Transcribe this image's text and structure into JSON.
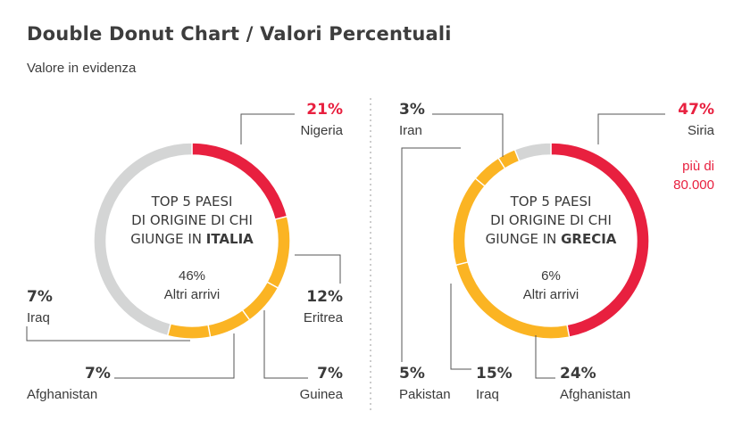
{
  "title": "Double Donut Chart / Valori Percentuali",
  "subtitle": "Valore in evidenza",
  "colors": {
    "highlight": "#e8203f",
    "main": "#fbb423",
    "other": "#d4d5d5",
    "text": "#3a3a3a",
    "leader": "#555555"
  },
  "chart_data": [
    {
      "type": "pie",
      "center": {
        "line1": "TOP 5 PAESI",
        "line2": "DI ORIGINE DI CHI",
        "line3_prefix": "GIUNGE IN ",
        "line3_bold": "ITALIA",
        "other_value": "46%",
        "other_label": "Altri arrivi"
      },
      "slices": [
        {
          "label": "Nigeria",
          "value": 21,
          "value_label": "21%",
          "highlight": true
        },
        {
          "label": "Eritrea",
          "value": 12,
          "value_label": "12%"
        },
        {
          "label": "Guinea",
          "value": 7,
          "value_label": "7%"
        },
        {
          "label": "Afghanistan",
          "value": 7,
          "value_label": "7%"
        },
        {
          "label": "Iraq",
          "value": 7,
          "value_label": "7%"
        },
        {
          "label": "Altri arrivi",
          "value": 46,
          "other": true
        }
      ]
    },
    {
      "type": "pie",
      "center": {
        "line1": "TOP 5 PAESI",
        "line2": "DI ORIGINE DI CHI",
        "line3_prefix": "GIUNGE IN ",
        "line3_bold": "GRECIA",
        "other_value": "6%",
        "other_label": "Altri arrivi"
      },
      "note_line1": "più di",
      "note_line2": "80.000",
      "slices": [
        {
          "label": "Siria",
          "value": 47,
          "value_label": "47%",
          "highlight": true
        },
        {
          "label": "Afghanistan",
          "value": 24,
          "value_label": "24%"
        },
        {
          "label": "Iraq",
          "value": 15,
          "value_label": "15%"
        },
        {
          "label": "Pakistan",
          "value": 5,
          "value_label": "5%"
        },
        {
          "label": "Iran",
          "value": 3,
          "value_label": "3%"
        },
        {
          "label": "Altri arrivi",
          "value": 6,
          "other": true
        }
      ]
    }
  ]
}
